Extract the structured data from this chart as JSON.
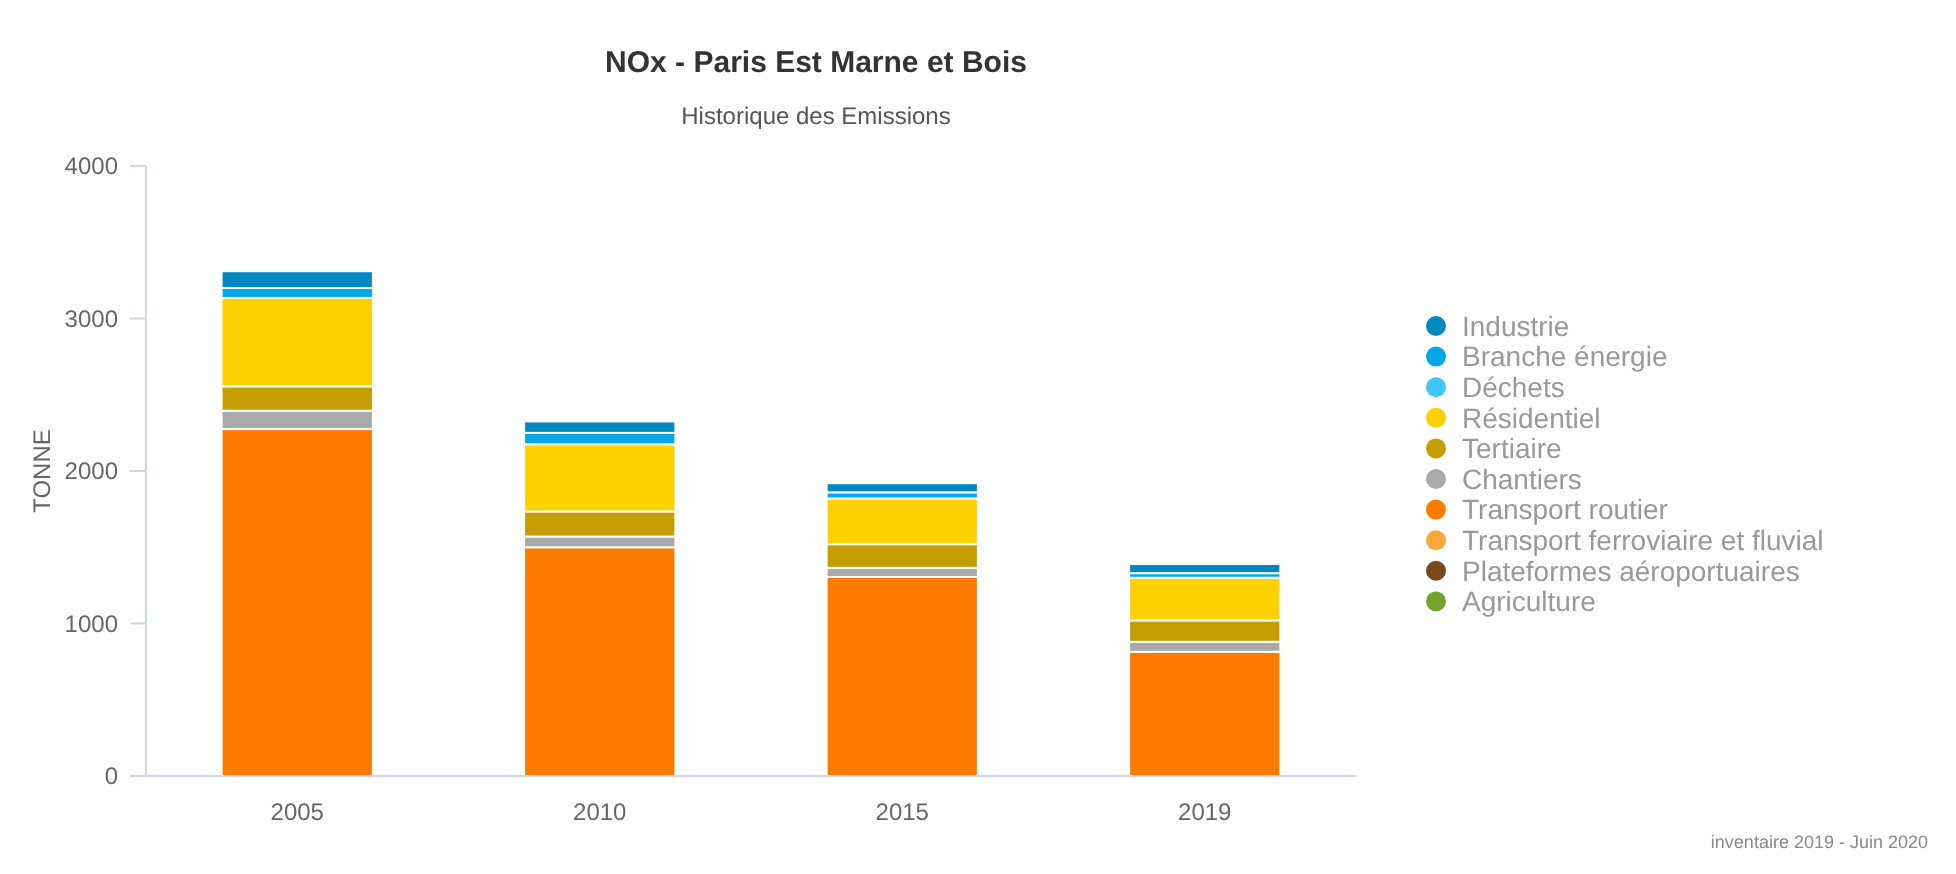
{
  "chart_data": {
    "type": "bar",
    "title": "NOx - Paris Est Marne et Bois",
    "subtitle": "Historique des Emissions",
    "ylabel": "TONNE",
    "categories": [
      "2005",
      "2010",
      "2015",
      "2019"
    ],
    "stacked": true,
    "ylim": [
      0,
      4000
    ],
    "yticks": [
      0,
      1000,
      2000,
      3000,
      4000
    ],
    "legend": "right",
    "annotations": [
      "inventaire 2019 - Juin 2020"
    ],
    "series": [
      {
        "name": "Agriculture",
        "color": "#77a32a",
        "values": [
          0,
          0,
          0,
          0
        ]
      },
      {
        "name": "Plateformes aéroportuaires",
        "color": "#7b4a1c",
        "values": [
          0,
          0,
          0,
          0
        ]
      },
      {
        "name": "Transport ferroviaire et fluvial",
        "color": "#ffa53a",
        "values": [
          0,
          0,
          0,
          0
        ]
      },
      {
        "name": "Transport routier",
        "color": "#ff7b00",
        "values": [
          2275,
          1500,
          1305,
          815
        ]
      },
      {
        "name": "Chantiers",
        "color": "#a9a9a9",
        "values": [
          120,
          70,
          60,
          65
        ]
      },
      {
        "name": "Tertiaire",
        "color": "#c49e00",
        "values": [
          160,
          165,
          155,
          140
        ]
      },
      {
        "name": "Résidentiel",
        "color": "#ffd000",
        "values": [
          580,
          440,
          300,
          280
        ]
      },
      {
        "name": "Déchets",
        "color": "#40c8f4",
        "values": [
          0,
          0,
          0,
          0
        ]
      },
      {
        "name": "Branche énergie",
        "color": "#00a8e8",
        "values": [
          65,
          75,
          40,
          30
        ]
      },
      {
        "name": "Industrie",
        "color": "#0088c0",
        "values": [
          110,
          75,
          60,
          60
        ]
      }
    ]
  }
}
